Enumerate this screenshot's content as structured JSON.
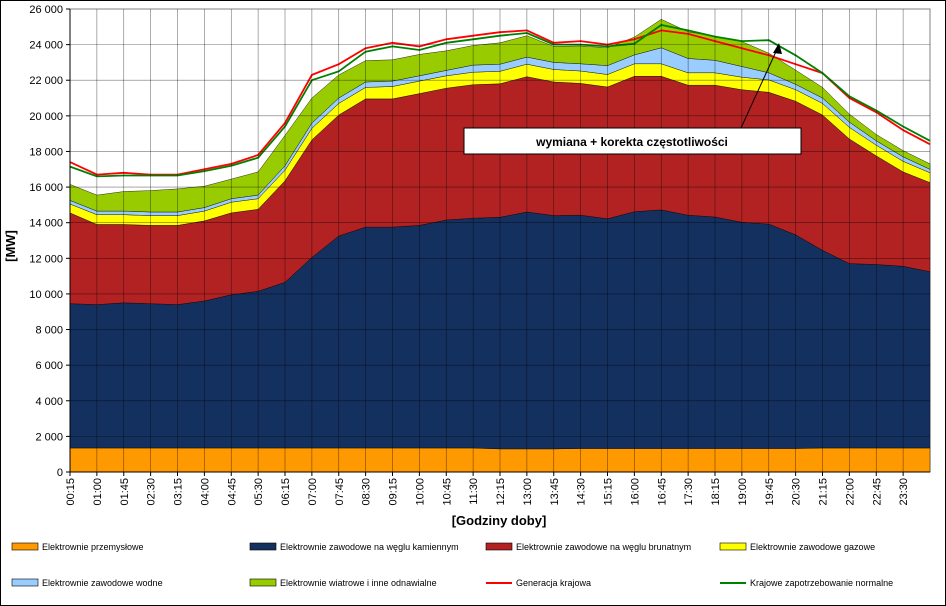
{
  "chart_data": {
    "type": "area",
    "stacked": true,
    "title": "",
    "xlabel": "[Godziny doby]",
    "ylabel": "[MW]",
    "ylim": [
      0,
      26000
    ],
    "grid": true,
    "legend_position": "bottom",
    "x_tick_labels": [
      "00:15",
      "01:00",
      "01:45",
      "02:30",
      "03:15",
      "04:00",
      "04:45",
      "05:30",
      "06:15",
      "07:00",
      "07:45",
      "08:30",
      "09:15",
      "10:00",
      "10:45",
      "11:30",
      "12:15",
      "13:00",
      "13:45",
      "14:30",
      "15:15",
      "16:00",
      "16:45",
      "17:30",
      "18:15",
      "19:00",
      "19:45",
      "20:30",
      "21:15",
      "22:00",
      "22:45",
      "23:30"
    ],
    "y_tick_labels": [
      "0",
      "2 000",
      "4 000",
      "6 000",
      "8 000",
      "10 000",
      "12 000",
      "14 000",
      "16 000",
      "18 000",
      "20 000",
      "22 000",
      "24 000",
      "26 000"
    ],
    "x": [
      "00:15",
      "01:00",
      "01:45",
      "02:30",
      "03:15",
      "04:00",
      "04:45",
      "05:30",
      "06:15",
      "07:00",
      "07:45",
      "08:30",
      "09:15",
      "10:00",
      "10:45",
      "11:30",
      "12:15",
      "13:00",
      "13:45",
      "14:30",
      "15:15",
      "16:00",
      "16:45",
      "17:30",
      "18:15",
      "19:00",
      "19:45",
      "20:30",
      "21:15",
      "22:00",
      "22:45",
      "23:30",
      "24:00"
    ],
    "series": [
      {
        "name": "Elektrownie przemysłowe",
        "kind": "area",
        "color": "#ff9900",
        "values": [
          1350,
          1350,
          1350,
          1350,
          1350,
          1350,
          1350,
          1350,
          1350,
          1350,
          1350,
          1350,
          1350,
          1350,
          1350,
          1350,
          1300,
          1300,
          1300,
          1320,
          1320,
          1320,
          1320,
          1320,
          1320,
          1320,
          1320,
          1320,
          1350,
          1350,
          1350,
          1350,
          1350
        ]
      },
      {
        "name": "Elektrownie zawodowe na węglu kamiennym",
        "kind": "area",
        "color": "#14305e",
        "values": [
          8100,
          8050,
          8150,
          8100,
          8050,
          8250,
          8600,
          8800,
          9300,
          10700,
          11900,
          12400,
          12400,
          12500,
          12800,
          12900,
          13000,
          13300,
          13100,
          13100,
          12900,
          13300,
          13400,
          13100,
          13000,
          12700,
          12600,
          12000,
          11100,
          10350,
          10300,
          10200,
          9900
        ]
      },
      {
        "name": "Elektrownie zawodowe na węglu brunatnym",
        "kind": "area",
        "color": "#b22222",
        "values": [
          5100,
          4500,
          4400,
          4400,
          4450,
          4500,
          4600,
          4600,
          5700,
          6600,
          6800,
          7200,
          7200,
          7400,
          7400,
          7500,
          7500,
          7600,
          7500,
          7400,
          7400,
          7600,
          7500,
          7300,
          7400,
          7450,
          7400,
          7500,
          7600,
          7000,
          6100,
          5300,
          5000
        ]
      },
      {
        "name": "Elektrownie zawodowe gazowe",
        "kind": "area",
        "color": "#ffff00",
        "values": [
          500,
          550,
          550,
          550,
          550,
          550,
          600,
          600,
          600,
          650,
          650,
          650,
          700,
          700,
          700,
          700,
          700,
          700,
          700,
          700,
          700,
          700,
          700,
          700,
          700,
          700,
          700,
          650,
          650,
          650,
          600,
          600,
          550
        ]
      },
      {
        "name": "Elektrownie zawodowe wodne",
        "kind": "area",
        "color": "#99ccff",
        "values": [
          200,
          200,
          200,
          200,
          200,
          200,
          200,
          200,
          250,
          300,
          300,
          300,
          300,
          300,
          300,
          400,
          400,
          400,
          400,
          400,
          500,
          500,
          900,
          800,
          700,
          600,
          400,
          300,
          300,
          300,
          250,
          250,
          200
        ]
      },
      {
        "name": "Elektrownie wiatrowe i inne odnawialne",
        "kind": "area",
        "color": "#99cc00",
        "values": [
          900,
          900,
          1100,
          1200,
          1300,
          1200,
          1100,
          1300,
          1700,
          1400,
          1300,
          1200,
          1200,
          1200,
          1100,
          1100,
          1200,
          1200,
          900,
          1000,
          1000,
          1000,
          1600,
          1500,
          1350,
          1400,
          1100,
          800,
          600,
          450,
          350,
          350,
          300
        ]
      },
      {
        "name": "Generacja krajowa",
        "kind": "line",
        "color": "#ff0000",
        "values": [
          17400,
          16700,
          16800,
          16700,
          16700,
          17000,
          17300,
          17800,
          19600,
          22300,
          22900,
          23800,
          24100,
          23900,
          24300,
          24500,
          24700,
          24800,
          24100,
          24200,
          24000,
          24300,
          24800,
          24600,
          24200,
          23800,
          23400,
          22900,
          22400,
          21000,
          20200,
          19200,
          18400
        ]
      },
      {
        "name": "Krajowe zapotrzebowanie normalne",
        "kind": "line",
        "color": "#008000",
        "values": [
          17150,
          16600,
          16650,
          16650,
          16650,
          16900,
          17200,
          17650,
          19400,
          22000,
          22500,
          23600,
          23900,
          23700,
          24100,
          24300,
          24500,
          24650,
          24000,
          24000,
          23900,
          24050,
          25100,
          24800,
          24450,
          24200,
          24250,
          23400,
          22400,
          21100,
          20300,
          19400,
          18600
        ]
      }
    ],
    "annotations": [
      {
        "text": "wymiana + korekta częstotliwości"
      }
    ]
  }
}
